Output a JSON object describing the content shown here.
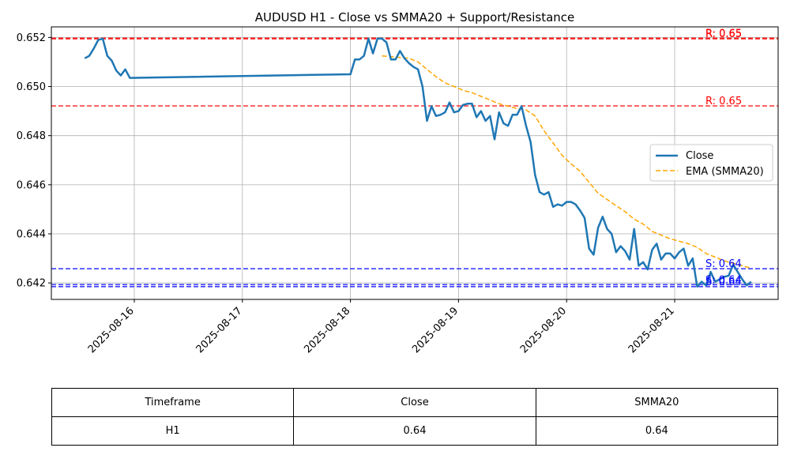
{
  "chart_data": {
    "type": "line",
    "title": "AUDUSD H1 - Close vs SMMA20 + Support/Resistance",
    "xlabel": "",
    "ylabel": "",
    "ylim": [
      0.64133,
      0.65243
    ],
    "y_ticks": [
      "0.642",
      "0.644",
      "0.646",
      "0.648",
      "0.650",
      "0.652"
    ],
    "x_ticks": [
      "2025-08-16",
      "2025-08-17",
      "2025-08-18",
      "2025-08-19",
      "2025-08-20",
      "2025-08-21"
    ],
    "grid": true,
    "legend_position": "right",
    "series": [
      {
        "name": "Close",
        "color": "#1f77b4",
        "style": "solid",
        "points": [
          [
            "2025-08-15 13:00",
            0.65115
          ],
          [
            "2025-08-15 14:00",
            0.65125
          ],
          [
            "2025-08-15 15:00",
            0.65155
          ],
          [
            "2025-08-15 16:00",
            0.6519
          ],
          [
            "2025-08-15 17:00",
            0.65195
          ],
          [
            "2025-08-15 18:00",
            0.65125
          ],
          [
            "2025-08-15 19:00",
            0.65105
          ],
          [
            "2025-08-15 20:00",
            0.65065
          ],
          [
            "2025-08-15 21:00",
            0.65045
          ],
          [
            "2025-08-15 22:00",
            0.6507
          ],
          [
            "2025-08-15 23:00",
            0.65035
          ],
          [
            "2025-08-18 00:00",
            0.6505
          ],
          [
            "2025-08-18 01:00",
            0.6511
          ],
          [
            "2025-08-18 02:00",
            0.6511
          ],
          [
            "2025-08-18 03:00",
            0.65125
          ],
          [
            "2025-08-18 04:00",
            0.65195
          ],
          [
            "2025-08-18 05:00",
            0.65135
          ],
          [
            "2025-08-18 06:00",
            0.65195
          ],
          [
            "2025-08-18 07:00",
            0.65195
          ],
          [
            "2025-08-18 08:00",
            0.6518
          ],
          [
            "2025-08-18 09:00",
            0.6511
          ],
          [
            "2025-08-18 10:00",
            0.6511
          ],
          [
            "2025-08-18 11:00",
            0.65145
          ],
          [
            "2025-08-18 12:00",
            0.65115
          ],
          [
            "2025-08-18 13:00",
            0.65095
          ],
          [
            "2025-08-18 14:00",
            0.6508
          ],
          [
            "2025-08-18 15:00",
            0.6507
          ],
          [
            "2025-08-18 16:00",
            0.65
          ],
          [
            "2025-08-18 17:00",
            0.6486
          ],
          [
            "2025-08-18 18:00",
            0.6492
          ],
          [
            "2025-08-18 19:00",
            0.6488
          ],
          [
            "2025-08-18 20:00",
            0.64885
          ],
          [
            "2025-08-18 21:00",
            0.64895
          ],
          [
            "2025-08-18 22:00",
            0.64935
          ],
          [
            "2025-08-18 23:00",
            0.64895
          ],
          [
            "2025-08-19 00:00",
            0.649
          ],
          [
            "2025-08-19 01:00",
            0.64925
          ],
          [
            "2025-08-19 02:00",
            0.6493
          ],
          [
            "2025-08-19 03:00",
            0.6493
          ],
          [
            "2025-08-19 04:00",
            0.64875
          ],
          [
            "2025-08-19 05:00",
            0.649
          ],
          [
            "2025-08-19 06:00",
            0.6486
          ],
          [
            "2025-08-19 07:00",
            0.6488
          ],
          [
            "2025-08-19 08:00",
            0.64785
          ],
          [
            "2025-08-19 09:00",
            0.64895
          ],
          [
            "2025-08-19 10:00",
            0.6485
          ],
          [
            "2025-08-19 11:00",
            0.6484
          ],
          [
            "2025-08-19 12:00",
            0.64885
          ],
          [
            "2025-08-19 13:00",
            0.64885
          ],
          [
            "2025-08-19 14:00",
            0.6492
          ],
          [
            "2025-08-19 15:00",
            0.6484
          ],
          [
            "2025-08-19 16:00",
            0.64775
          ],
          [
            "2025-08-19 17:00",
            0.6464
          ],
          [
            "2025-08-19 18:00",
            0.6457
          ],
          [
            "2025-08-19 19:00",
            0.6456
          ],
          [
            "2025-08-19 20:00",
            0.6457
          ],
          [
            "2025-08-19 21:00",
            0.6451
          ],
          [
            "2025-08-19 22:00",
            0.6452
          ],
          [
            "2025-08-19 23:00",
            0.64515
          ],
          [
            "2025-08-20 00:00",
            0.6453
          ],
          [
            "2025-08-20 01:00",
            0.6453
          ],
          [
            "2025-08-20 02:00",
            0.6452
          ],
          [
            "2025-08-20 03:00",
            0.64495
          ],
          [
            "2025-08-20 04:00",
            0.64465
          ],
          [
            "2025-08-20 05:00",
            0.6434
          ],
          [
            "2025-08-20 06:00",
            0.64315
          ],
          [
            "2025-08-20 07:00",
            0.64425
          ],
          [
            "2025-08-20 08:00",
            0.6447
          ],
          [
            "2025-08-20 09:00",
            0.6442
          ],
          [
            "2025-08-20 10:00",
            0.644
          ],
          [
            "2025-08-20 11:00",
            0.64325
          ],
          [
            "2025-08-20 12:00",
            0.6435
          ],
          [
            "2025-08-20 13:00",
            0.6433
          ],
          [
            "2025-08-20 14:00",
            0.64295
          ],
          [
            "2025-08-20 15:00",
            0.6442
          ],
          [
            "2025-08-20 16:00",
            0.6427
          ],
          [
            "2025-08-20 17:00",
            0.64285
          ],
          [
            "2025-08-20 18:00",
            0.64255
          ],
          [
            "2025-08-20 19:00",
            0.64335
          ],
          [
            "2025-08-20 20:00",
            0.6436
          ],
          [
            "2025-08-20 21:00",
            0.64295
          ],
          [
            "2025-08-20 22:00",
            0.6432
          ],
          [
            "2025-08-20 23:00",
            0.6432
          ],
          [
            "2025-08-21 00:00",
            0.643
          ],
          [
            "2025-08-21 01:00",
            0.64325
          ],
          [
            "2025-08-21 02:00",
            0.6434
          ],
          [
            "2025-08-21 03:00",
            0.6427
          ],
          [
            "2025-08-21 04:00",
            0.643
          ],
          [
            "2025-08-21 05:00",
            0.64185
          ],
          [
            "2025-08-21 06:00",
            0.64205
          ],
          [
            "2025-08-21 07:00",
            0.6419
          ],
          [
            "2025-08-21 08:00",
            0.64245
          ],
          [
            "2025-08-21 09:00",
            0.64205
          ],
          [
            "2025-08-21 10:00",
            0.64215
          ],
          [
            "2025-08-21 11:00",
            0.64225
          ],
          [
            "2025-08-21 12:00",
            0.6423
          ],
          [
            "2025-08-21 13:00",
            0.64275
          ],
          [
            "2025-08-21 14:00",
            0.64245
          ],
          [
            "2025-08-21 15:00",
            0.64215
          ],
          [
            "2025-08-21 16:00",
            0.6419
          ],
          [
            "2025-08-21 17:00",
            0.64205
          ]
        ]
      },
      {
        "name": "EMA (SMMA20)",
        "color": "#ffa500",
        "style": "dashed",
        "points": [
          [
            "2025-08-18 07:00",
            0.65125
          ],
          [
            "2025-08-18 10:00",
            0.6512
          ],
          [
            "2025-08-18 13:00",
            0.65115
          ],
          [
            "2025-08-18 15:00",
            0.651
          ],
          [
            "2025-08-18 17:00",
            0.6507
          ],
          [
            "2025-08-18 19:00",
            0.6504
          ],
          [
            "2025-08-18 21:00",
            0.65015
          ],
          [
            "2025-08-18 23:00",
            0.65
          ],
          [
            "2025-08-19 01:00",
            0.64985
          ],
          [
            "2025-08-19 03:00",
            0.64975
          ],
          [
            "2025-08-19 05:00",
            0.6496
          ],
          [
            "2025-08-19 07:00",
            0.64945
          ],
          [
            "2025-08-19 09:00",
            0.6493
          ],
          [
            "2025-08-19 11:00",
            0.6492
          ],
          [
            "2025-08-19 13:00",
            0.6491
          ],
          [
            "2025-08-19 15:00",
            0.64905
          ],
          [
            "2025-08-19 17:00",
            0.6488
          ],
          [
            "2025-08-19 19:00",
            0.6482
          ],
          [
            "2025-08-19 21:00",
            0.6477
          ],
          [
            "2025-08-19 23:00",
            0.6472
          ],
          [
            "2025-08-20 01:00",
            0.64685
          ],
          [
            "2025-08-20 03:00",
            0.64655
          ],
          [
            "2025-08-20 05:00",
            0.6461
          ],
          [
            "2025-08-20 07:00",
            0.64565
          ],
          [
            "2025-08-20 09:00",
            0.6454
          ],
          [
            "2025-08-20 11:00",
            0.64515
          ],
          [
            "2025-08-20 13:00",
            0.6449
          ],
          [
            "2025-08-20 15:00",
            0.6446
          ],
          [
            "2025-08-20 17:00",
            0.6444
          ],
          [
            "2025-08-20 19:00",
            0.6441
          ],
          [
            "2025-08-20 21:00",
            0.64395
          ],
          [
            "2025-08-20 23:00",
            0.6438
          ],
          [
            "2025-08-21 01:00",
            0.6437
          ],
          [
            "2025-08-21 03:00",
            0.6436
          ],
          [
            "2025-08-21 05:00",
            0.64345
          ],
          [
            "2025-08-21 07:00",
            0.6432
          ],
          [
            "2025-08-21 09:00",
            0.64305
          ],
          [
            "2025-08-21 11:00",
            0.6429
          ],
          [
            "2025-08-21 13:00",
            0.6428
          ],
          [
            "2025-08-21 15:00",
            0.6427
          ],
          [
            "2025-08-21 17:00",
            0.6426
          ]
        ]
      }
    ],
    "resistance": [
      {
        "label": "R: 0.65",
        "value": 0.65194,
        "color": "#ff0000"
      },
      {
        "label": "R: 0.65",
        "value": 0.65197,
        "color": "#ff0000"
      },
      {
        "label": "R: 0.65",
        "value": 0.64921,
        "color": "#ff0000"
      }
    ],
    "support": [
      {
        "label": "S: 0.64",
        "value": 0.64258,
        "color": "#0000ff"
      },
      {
        "label": "S: 0.64",
        "value": 0.64193,
        "color": "#0000ff"
      },
      {
        "label": "S: 0.64",
        "value": 0.64185,
        "color": "#0000ff"
      }
    ],
    "table": {
      "headers": [
        "Timeframe",
        "Close",
        "SMMA20"
      ],
      "rows": [
        [
          "H1",
          "0.64",
          "0.64"
        ]
      ]
    }
  }
}
